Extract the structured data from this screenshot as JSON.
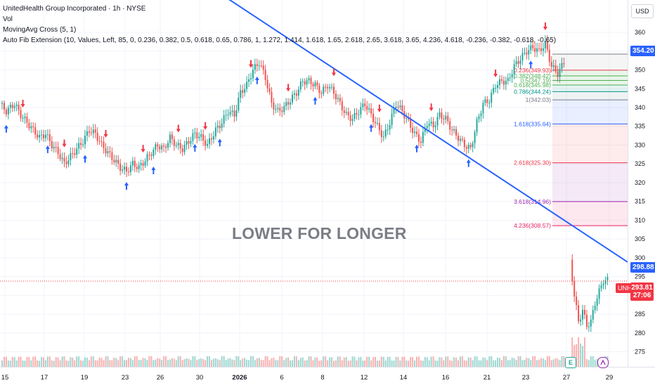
{
  "legend": {
    "symbol": "UnitedHealth Group Incorporated · 1h · NYSE",
    "vol": "Vol",
    "ma_cross": "MovingAvg Cross (5, 1)",
    "fib": "Auto Fib Extension (10, Values, Left, 85, 0, 0.236, 0.382, 0.5, 0.618, 0.65, 0.786, 1, 1.272, 1.414, 1.618, 1.65, 2.618, 2.65, 3.618, 3.65, 4.236, 4.618, -0.236, -0.382, -0.618, -0.65)"
  },
  "annotation": "LOWER FOR LONGER",
  "currency": "USD",
  "price_tags": {
    "fib_top": "354.20",
    "trendline": "298.88",
    "unh_badge": "UNH",
    "last": "293.81",
    "countdown": "27:06"
  },
  "events": {
    "earnings": "E",
    "dividend": ""
  },
  "colors": {
    "up": "#26a69a",
    "down": "#ef5350",
    "trend": "#2962ff",
    "fib_blue": "#2962ff",
    "fib_red": "#f23645",
    "fib_purple": "#9c27b0",
    "fib_green": "#4caf50"
  },
  "chart_data": {
    "type": "candlestick",
    "y_axis": {
      "range": [
        271,
        363
      ],
      "ticks": [
        360,
        355,
        350,
        345,
        340,
        335,
        330,
        325,
        320,
        315,
        310,
        305,
        300,
        295,
        290,
        285,
        280,
        275
      ]
    },
    "x_axis": {
      "ticks": [
        "15",
        "17",
        "19",
        "23",
        "26",
        "30",
        "2026",
        "6",
        "8",
        "12",
        "14",
        "16",
        "21",
        "23",
        "27",
        "29"
      ]
    },
    "close_path": [
      [
        0,
        341
      ],
      [
        3,
        339
      ],
      [
        7,
        341
      ],
      [
        10,
        338
      ],
      [
        13,
        336
      ],
      [
        16,
        334
      ],
      [
        19,
        332
      ],
      [
        22,
        333
      ],
      [
        25,
        330
      ],
      [
        28,
        328
      ],
      [
        31,
        325
      ],
      [
        34,
        327
      ],
      [
        37,
        329
      ],
      [
        40,
        331
      ],
      [
        43,
        334
      ],
      [
        46,
        333
      ],
      [
        49,
        330
      ],
      [
        52,
        328
      ],
      [
        55,
        326
      ],
      [
        58,
        324
      ],
      [
        61,
        323
      ],
      [
        64,
        325
      ],
      [
        67,
        324
      ],
      [
        70,
        326
      ],
      [
        73,
        328
      ],
      [
        76,
        330
      ],
      [
        79,
        329
      ],
      [
        82,
        332
      ],
      [
        85,
        330
      ],
      [
        88,
        329
      ],
      [
        91,
        331
      ],
      [
        94,
        333
      ],
      [
        97,
        332
      ],
      [
        100,
        330
      ],
      [
        104,
        334
      ],
      [
        107,
        336
      ],
      [
        110,
        339
      ],
      [
        113,
        338
      ],
      [
        116,
        344
      ],
      [
        119,
        346
      ],
      [
        122,
        350
      ],
      [
        125,
        352
      ],
      [
        128,
        348
      ],
      [
        131,
        341
      ],
      [
        134,
        339
      ],
      [
        137,
        340
      ],
      [
        140,
        342
      ],
      [
        143,
        344
      ],
      [
        146,
        347
      ],
      [
        149,
        347
      ],
      [
        152,
        346
      ],
      [
        155,
        344
      ],
      [
        158,
        346
      ],
      [
        161,
        344
      ],
      [
        164,
        341
      ],
      [
        167,
        338
      ],
      [
        170,
        337
      ],
      [
        173,
        339
      ],
      [
        176,
        341
      ],
      [
        179,
        338
      ],
      [
        182,
        335
      ],
      [
        185,
        332
      ],
      [
        188,
        336
      ],
      [
        191,
        341
      ],
      [
        194,
        339
      ],
      [
        197,
        336
      ],
      [
        200,
        333
      ],
      [
        203,
        331
      ],
      [
        206,
        336
      ],
      [
        209,
        335
      ],
      [
        212,
        338
      ],
      [
        215,
        337
      ],
      [
        218,
        334
      ],
      [
        221,
        332
      ],
      [
        224,
        330
      ],
      [
        227,
        329
      ],
      [
        230,
        336
      ],
      [
        233,
        341
      ],
      [
        236,
        342
      ],
      [
        239,
        346
      ],
      [
        242,
        347
      ],
      [
        245,
        347
      ],
      [
        248,
        351
      ],
      [
        251,
        353
      ],
      [
        254,
        355
      ],
      [
        257,
        356
      ],
      [
        260,
        355
      ],
      [
        263,
        357
      ],
      [
        266,
        351
      ],
      [
        269,
        349
      ],
      [
        272,
        352
      ]
    ],
    "post_gap_path": [
      [
        275,
        299
      ],
      [
        277,
        290
      ],
      [
        279,
        283
      ],
      [
        281,
        286
      ],
      [
        283,
        282
      ],
      [
        285,
        283
      ],
      [
        287,
        288
      ],
      [
        289,
        291
      ],
      [
        291,
        294
      ],
      [
        293,
        294
      ]
    ],
    "trendline": {
      "from": {
        "bar": 95,
        "price": 374
      },
      "to": {
        "bar": 295,
        "price": 298.88
      }
    },
    "moving_avg_cross_signals": {
      "buy_bars": [
        2,
        22,
        40,
        60,
        73,
        93,
        105,
        123,
        151,
        178,
        200,
        225,
        255
      ],
      "sell_bars": [
        10,
        30,
        50,
        68,
        85,
        98,
        120,
        138,
        160,
        182,
        207,
        238,
        262
      ]
    },
    "fib_extension": {
      "direction": "down",
      "levels": [
        {
          "ratio": "0.236",
          "price": 349.93
        },
        {
          "ratio": "0.382",
          "price": 348.42
        },
        {
          "ratio": "0.5",
          "price": 347.19
        },
        {
          "ratio": "0.618",
          "price": 345.98
        },
        {
          "ratio": "0.786",
          "price": 344.24
        },
        {
          "ratio": "1",
          "price": 342.03
        },
        {
          "ratio": "1.618",
          "price": 335.64
        },
        {
          "ratio": "2.618",
          "price": 325.3
        },
        {
          "ratio": "3.618",
          "price": 314.96
        },
        {
          "ratio": "4.236",
          "price": 308.57
        }
      ]
    }
  }
}
